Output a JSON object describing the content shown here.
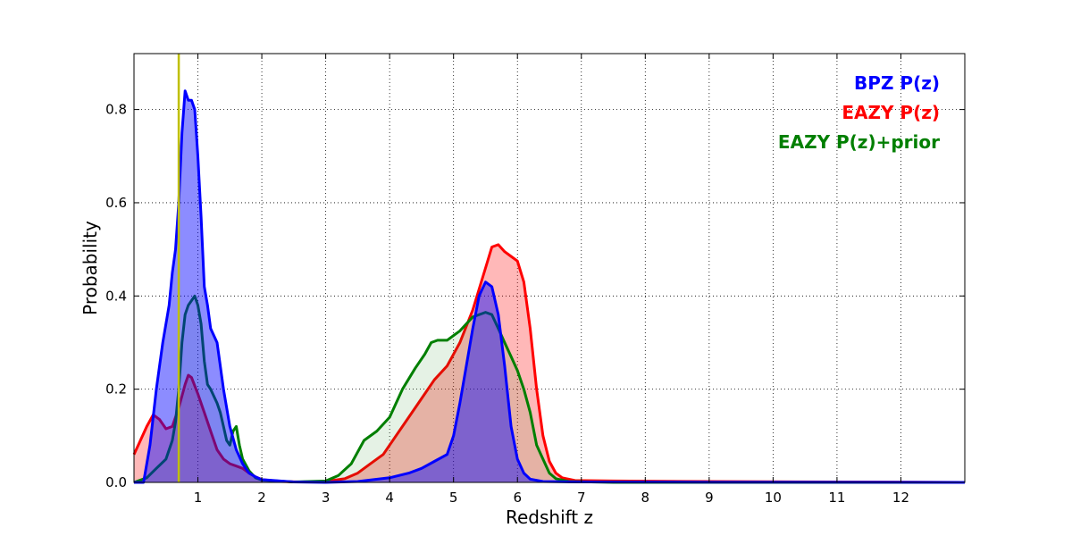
{
  "chart_data": {
    "type": "area",
    "xlabel": "Redshift z",
    "ylabel": "Probability",
    "xlim": [
      0,
      13
    ],
    "ylim": [
      0,
      0.92
    ],
    "x_ticks": [
      1,
      2,
      3,
      4,
      5,
      6,
      7,
      8,
      9,
      10,
      11,
      12
    ],
    "y_ticks": [
      0.0,
      0.2,
      0.4,
      0.6,
      0.8
    ],
    "x_tick_labels": [
      "1",
      "2",
      "3",
      "4",
      "5",
      "6",
      "7",
      "8",
      "9",
      "10",
      "11",
      "12"
    ],
    "y_tick_labels": [
      "0.0",
      "0.2",
      "0.4",
      "0.6",
      "0.8"
    ],
    "grid": true,
    "grid_style": "dotted",
    "legend_placement": "top-right",
    "vertical_marker": {
      "x": 0.7,
      "color": "#bfbf00"
    },
    "series": [
      {
        "name": "EAZY P(z)",
        "color": "#ff0000",
        "fill": "#ff0000",
        "fill_opacity": 0.28,
        "points": [
          [
            0.0,
            0.06
          ],
          [
            0.1,
            0.09
          ],
          [
            0.2,
            0.12
          ],
          [
            0.3,
            0.145
          ],
          [
            0.4,
            0.135
          ],
          [
            0.5,
            0.115
          ],
          [
            0.6,
            0.12
          ],
          [
            0.7,
            0.16
          ],
          [
            0.8,
            0.21
          ],
          [
            0.85,
            0.23
          ],
          [
            0.9,
            0.225
          ],
          [
            1.0,
            0.19
          ],
          [
            1.1,
            0.15
          ],
          [
            1.2,
            0.11
          ],
          [
            1.3,
            0.07
          ],
          [
            1.4,
            0.05
          ],
          [
            1.5,
            0.04
          ],
          [
            1.6,
            0.035
          ],
          [
            1.7,
            0.03
          ],
          [
            1.8,
            0.02
          ],
          [
            1.9,
            0.012
          ],
          [
            2.0,
            0.006
          ],
          [
            2.3,
            0.002
          ],
          [
            2.6,
            0.001
          ],
          [
            3.0,
            0.002
          ],
          [
            3.3,
            0.008
          ],
          [
            3.5,
            0.02
          ],
          [
            3.7,
            0.04
          ],
          [
            3.9,
            0.06
          ],
          [
            4.1,
            0.1
          ],
          [
            4.3,
            0.14
          ],
          [
            4.5,
            0.18
          ],
          [
            4.7,
            0.22
          ],
          [
            4.9,
            0.25
          ],
          [
            5.1,
            0.3
          ],
          [
            5.3,
            0.37
          ],
          [
            5.5,
            0.46
          ],
          [
            5.6,
            0.505
          ],
          [
            5.7,
            0.51
          ],
          [
            5.8,
            0.495
          ],
          [
            5.9,
            0.485
          ],
          [
            6.0,
            0.475
          ],
          [
            6.1,
            0.43
          ],
          [
            6.2,
            0.33
          ],
          [
            6.3,
            0.2
          ],
          [
            6.4,
            0.1
          ],
          [
            6.5,
            0.045
          ],
          [
            6.6,
            0.02
          ],
          [
            6.7,
            0.01
          ],
          [
            6.9,
            0.004
          ],
          [
            7.5,
            0.003
          ],
          [
            9.0,
            0.002
          ],
          [
            11.0,
            0.001
          ],
          [
            13.0,
            0.0
          ]
        ]
      },
      {
        "name": "EAZY P(z)+prior",
        "color": "#007f00",
        "fill": "#007f00",
        "fill_opacity": 0.1,
        "points": [
          [
            0.0,
            0.0
          ],
          [
            0.2,
            0.01
          ],
          [
            0.35,
            0.03
          ],
          [
            0.5,
            0.05
          ],
          [
            0.6,
            0.09
          ],
          [
            0.65,
            0.13
          ],
          [
            0.7,
            0.2
          ],
          [
            0.75,
            0.3
          ],
          [
            0.8,
            0.36
          ],
          [
            0.85,
            0.38
          ],
          [
            0.9,
            0.39
          ],
          [
            0.95,
            0.4
          ],
          [
            1.0,
            0.38
          ],
          [
            1.05,
            0.34
          ],
          [
            1.1,
            0.26
          ],
          [
            1.15,
            0.21
          ],
          [
            1.2,
            0.2
          ],
          [
            1.3,
            0.17
          ],
          [
            1.35,
            0.15
          ],
          [
            1.4,
            0.12
          ],
          [
            1.45,
            0.09
          ],
          [
            1.5,
            0.08
          ],
          [
            1.55,
            0.11
          ],
          [
            1.6,
            0.12
          ],
          [
            1.65,
            0.08
          ],
          [
            1.7,
            0.05
          ],
          [
            1.8,
            0.025
          ],
          [
            1.9,
            0.01
          ],
          [
            2.0,
            0.005
          ],
          [
            2.5,
            0.001
          ],
          [
            3.0,
            0.003
          ],
          [
            3.2,
            0.015
          ],
          [
            3.4,
            0.04
          ],
          [
            3.6,
            0.09
          ],
          [
            3.8,
            0.11
          ],
          [
            4.0,
            0.14
          ],
          [
            4.2,
            0.2
          ],
          [
            4.4,
            0.245
          ],
          [
            4.55,
            0.275
          ],
          [
            4.65,
            0.3
          ],
          [
            4.75,
            0.305
          ],
          [
            4.9,
            0.305
          ],
          [
            5.1,
            0.325
          ],
          [
            5.3,
            0.355
          ],
          [
            5.5,
            0.365
          ],
          [
            5.6,
            0.36
          ],
          [
            5.7,
            0.33
          ],
          [
            5.8,
            0.3
          ],
          [
            5.9,
            0.27
          ],
          [
            6.0,
            0.24
          ],
          [
            6.1,
            0.2
          ],
          [
            6.2,
            0.15
          ],
          [
            6.3,
            0.08
          ],
          [
            6.4,
            0.05
          ],
          [
            6.5,
            0.02
          ],
          [
            6.6,
            0.008
          ],
          [
            6.8,
            0.002
          ],
          [
            7.5,
            0.0
          ],
          [
            13.0,
            0.0
          ]
        ]
      },
      {
        "name": "BPZ P(z)",
        "color": "#0000ff",
        "fill": "#0000ff",
        "fill_opacity": 0.45,
        "points": [
          [
            0.0,
            0.0
          ],
          [
            0.15,
            0.0
          ],
          [
            0.25,
            0.08
          ],
          [
            0.35,
            0.2
          ],
          [
            0.45,
            0.3
          ],
          [
            0.55,
            0.38
          ],
          [
            0.6,
            0.45
          ],
          [
            0.65,
            0.5
          ],
          [
            0.7,
            0.6
          ],
          [
            0.75,
            0.75
          ],
          [
            0.8,
            0.84
          ],
          [
            0.85,
            0.82
          ],
          [
            0.9,
            0.82
          ],
          [
            0.95,
            0.8
          ],
          [
            1.0,
            0.7
          ],
          [
            1.05,
            0.57
          ],
          [
            1.1,
            0.42
          ],
          [
            1.15,
            0.38
          ],
          [
            1.2,
            0.33
          ],
          [
            1.3,
            0.3
          ],
          [
            1.4,
            0.2
          ],
          [
            1.5,
            0.12
          ],
          [
            1.6,
            0.07
          ],
          [
            1.7,
            0.04
          ],
          [
            1.8,
            0.02
          ],
          [
            1.9,
            0.012
          ],
          [
            2.0,
            0.006
          ],
          [
            2.5,
            0.001
          ],
          [
            3.0,
            0.0
          ],
          [
            3.5,
            0.002
          ],
          [
            4.0,
            0.01
          ],
          [
            4.3,
            0.02
          ],
          [
            4.5,
            0.03
          ],
          [
            4.7,
            0.045
          ],
          [
            4.9,
            0.06
          ],
          [
            5.0,
            0.1
          ],
          [
            5.1,
            0.17
          ],
          [
            5.2,
            0.25
          ],
          [
            5.3,
            0.33
          ],
          [
            5.4,
            0.4
          ],
          [
            5.5,
            0.43
          ],
          [
            5.6,
            0.42
          ],
          [
            5.7,
            0.36
          ],
          [
            5.8,
            0.25
          ],
          [
            5.9,
            0.12
          ],
          [
            6.0,
            0.05
          ],
          [
            6.1,
            0.02
          ],
          [
            6.2,
            0.007
          ],
          [
            6.4,
            0.002
          ],
          [
            7.0,
            0.001
          ],
          [
            9.0,
            0.0005
          ],
          [
            12.0,
            0.0002
          ],
          [
            13.0,
            0.0
          ]
        ]
      }
    ]
  },
  "legend": [
    {
      "label": "BPZ P(z)",
      "color": "#0000ff"
    },
    {
      "label": "EAZY P(z)",
      "color": "#ff0000"
    },
    {
      "label": "EAZY P(z)+prior",
      "color": "#007f00"
    }
  ]
}
